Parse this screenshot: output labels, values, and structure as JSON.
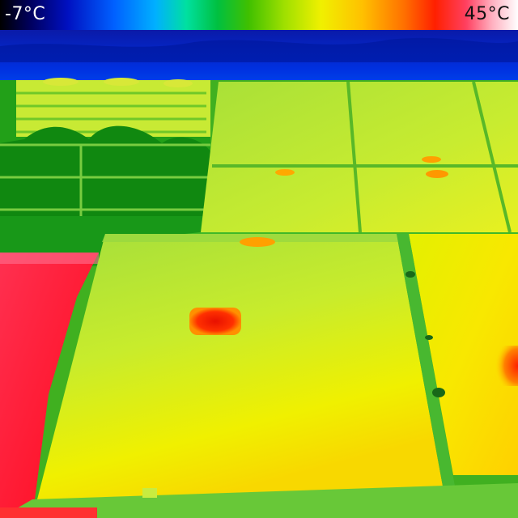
{
  "scale": {
    "min_label": "-7°C",
    "max_label": "45°C",
    "palette": [
      "#000000",
      "#0010c0",
      "#0060ff",
      "#00c040",
      "#a0e000",
      "#f0f000",
      "#ffc000",
      "#ff2000",
      "#ff4060",
      "#ffffff"
    ]
  },
  "image": {
    "description_icon": "thermal-image"
  }
}
